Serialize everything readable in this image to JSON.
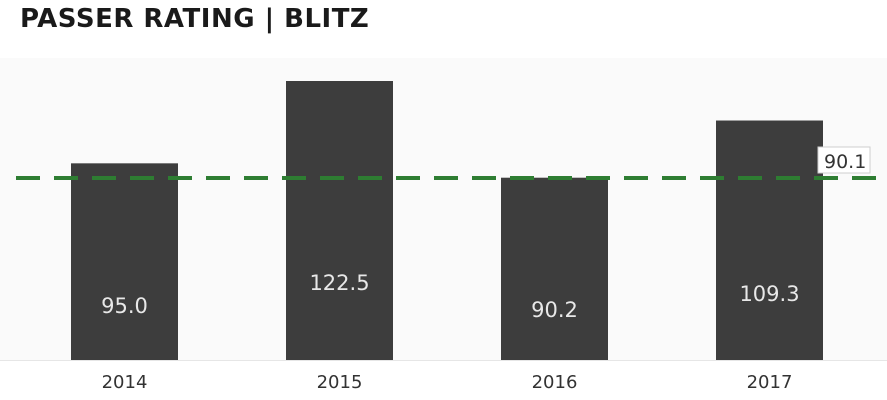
{
  "title": "PASSER RATING | BLITZ",
  "chart_data": {
    "type": "bar",
    "title": "PASSER RATING | BLITZ",
    "categories": [
      "2014",
      "2015",
      "2016",
      "2017"
    ],
    "values": [
      95.0,
      122.5,
      90.2,
      109.3
    ],
    "value_labels": [
      "95.0",
      "122.5",
      "90.2",
      "109.3"
    ],
    "reference_line": {
      "value": 90.1,
      "label": "90.1",
      "color": "#2e7d32",
      "style": "dashed"
    },
    "ylim": [
      40,
      130
    ],
    "bar_color": "#3d3d3d",
    "grid": false,
    "xlabel": "",
    "ylabel": ""
  }
}
